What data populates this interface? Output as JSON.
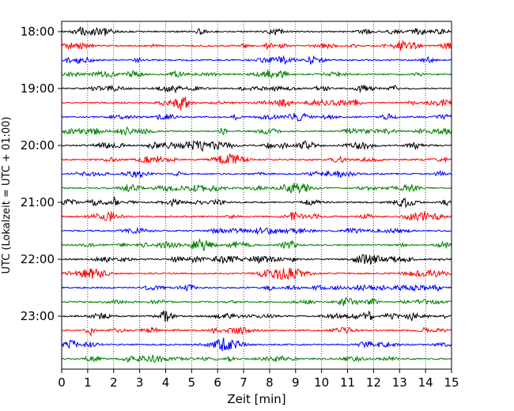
{
  "chart_data": {
    "type": "line",
    "title": "",
    "xlabel": "Zeit  [min]",
    "ylabel": "UTC (Lokalzeit = UTC + 01:00)",
    "xlim": [
      0,
      15
    ],
    "x_ticks": [
      0,
      1,
      2,
      3,
      4,
      5,
      6,
      7,
      8,
      9,
      10,
      11,
      12,
      13,
      14,
      15
    ],
    "y_tick_labels": [
      "18:00",
      "19:00",
      "20:00",
      "21:00",
      "22:00",
      "23:00"
    ],
    "grid": "vertical dotted",
    "trace_colors": [
      "#000000",
      "#ff0000",
      "#0000ff",
      "#008000"
    ],
    "series": [
      {
        "values": "18:00",
        "start_utc": "18:00",
        "color": "#000000"
      },
      {
        "values": "18:15",
        "start_utc": "18:15",
        "color": "#ff0000"
      },
      {
        "values": "18:30",
        "start_utc": "18:30",
        "color": "#0000ff"
      },
      {
        "values": "18:45",
        "start_utc": "18:45",
        "color": "#008000"
      },
      {
        "values": "19:00",
        "start_utc": "19:00",
        "color": "#000000"
      },
      {
        "values": "19:15",
        "start_utc": "19:15",
        "color": "#ff0000"
      },
      {
        "values": "19:30",
        "start_utc": "19:30",
        "color": "#0000ff"
      },
      {
        "values": "19:45",
        "start_utc": "19:45",
        "color": "#008000"
      },
      {
        "values": "20:00",
        "start_utc": "20:00",
        "color": "#000000"
      },
      {
        "values": "20:15",
        "start_utc": "20:15",
        "color": "#ff0000"
      },
      {
        "values": "20:30",
        "start_utc": "20:30",
        "color": "#0000ff"
      },
      {
        "values": "20:45",
        "start_utc": "20:45",
        "color": "#008000"
      },
      {
        "values": "21:00",
        "start_utc": "21:00",
        "color": "#000000"
      },
      {
        "values": "21:15",
        "start_utc": "21:15",
        "color": "#ff0000"
      },
      {
        "values": "21:30",
        "start_utc": "21:30",
        "color": "#0000ff"
      },
      {
        "values": "21:45",
        "start_utc": "21:45",
        "color": "#008000"
      },
      {
        "values": "22:00",
        "start_utc": "22:00",
        "color": "#000000"
      },
      {
        "values": "22:15",
        "start_utc": "22:15",
        "color": "#ff0000"
      },
      {
        "values": "22:30",
        "start_utc": "22:30",
        "color": "#0000ff"
      },
      {
        "values": "22:45",
        "start_utc": "22:45",
        "color": "#008000"
      },
      {
        "values": "23:00",
        "start_utc": "23:00",
        "color": "#000000"
      },
      {
        "values": "23:15",
        "start_utc": "23:15",
        "color": "#ff0000"
      },
      {
        "values": "23:30",
        "start_utc": "23:30",
        "color": "#0000ff"
      },
      {
        "values": "23:45",
        "start_utc": "23:45",
        "color": "#008000"
      }
    ]
  }
}
